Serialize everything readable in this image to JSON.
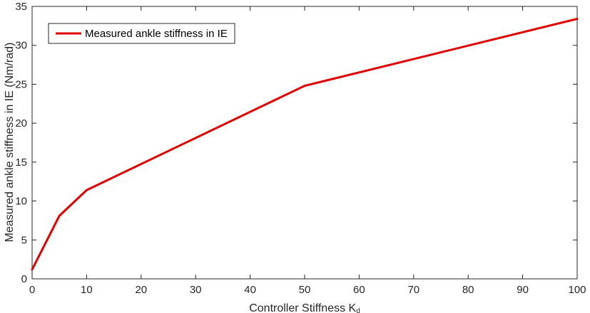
{
  "chart_data": {
    "type": "line",
    "title": "",
    "xlabel": "Controller Stiffness  K",
    "xlabel_subscript": "d",
    "ylabel": "Measured ankle stiffness in IE (Nm/rad)",
    "xlim": [
      0,
      100
    ],
    "ylim": [
      0,
      35
    ],
    "xticks": [
      0,
      10,
      20,
      30,
      40,
      50,
      60,
      70,
      80,
      90,
      100
    ],
    "yticks": [
      0,
      5,
      10,
      15,
      20,
      25,
      30,
      35
    ],
    "grid": false,
    "legend_position": "top-left",
    "series": [
      {
        "name": "Measured ankle stiffness in IE",
        "color": "#e00000",
        "x": [
          0,
          5,
          10,
          50,
          100
        ],
        "y": [
          1.2,
          8.1,
          11.4,
          24.8,
          33.4
        ]
      }
    ]
  }
}
